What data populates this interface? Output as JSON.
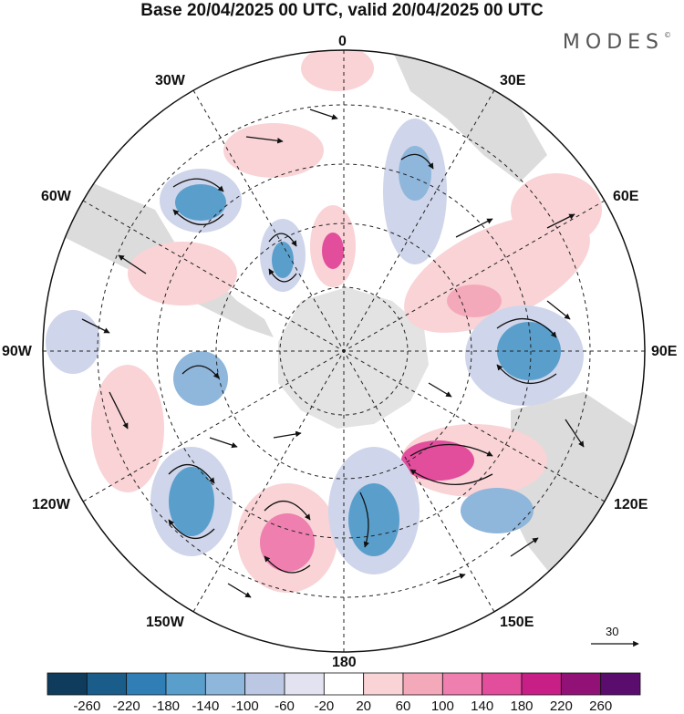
{
  "title": "Base 20/04/2025 00 UTC, valid 20/04/2025 00 UTC",
  "brand": "MODES",
  "brand_mark": "©",
  "longitude_labels": {
    "n0": "0",
    "n30e": "30E",
    "n60e": "60E",
    "n90e": "90E",
    "n120e": "120E",
    "n150e": "150E",
    "n180": "180",
    "n150w": "150W",
    "n120w": "120W",
    "n90w": "90W",
    "n60w": "60W",
    "n30w": "30W"
  },
  "reference_vector": {
    "value": "30"
  },
  "colorbar": {
    "colors": [
      "#0f3b5c",
      "#1a5d8a",
      "#2f7fb6",
      "#5a9fcc",
      "#8fb6db",
      "#bcc8e3",
      "#e2e2f1",
      "#ffffff",
      "#f9d3d6",
      "#f4a9bb",
      "#ee7fae",
      "#e24d9c",
      "#c81f86",
      "#921177",
      "#5b0d6e"
    ],
    "ticks": [
      "-260",
      "-220",
      "-180",
      "-140",
      "-100",
      "-60",
      "-20",
      "20",
      "60",
      "100",
      "140",
      "180",
      "220",
      "260"
    ]
  },
  "colors": {
    "land": "#dcdcdc",
    "antarctica": "#e3e3e3",
    "positive_light": "#f9d3d6",
    "positive_mid": "#f4a9bb",
    "positive_strong": "#e24d9c",
    "negative_light": "#cfd5ea",
    "negative_mid": "#8fb6db",
    "negative_strong": "#5a9fcc"
  }
}
